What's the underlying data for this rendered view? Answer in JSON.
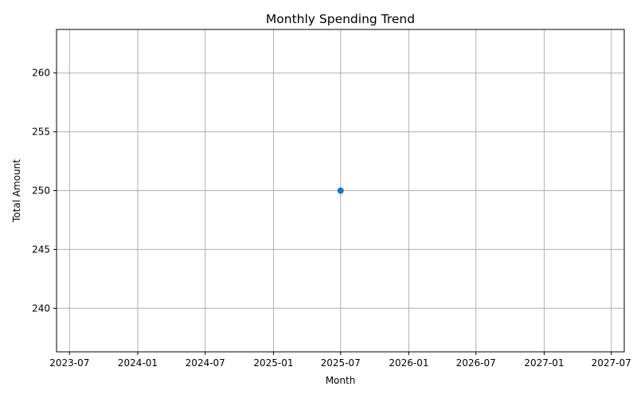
{
  "chart_data": {
    "type": "line",
    "title": "Monthly Spending Trend",
    "xlabel": "Month",
    "ylabel": "Total Amount",
    "x_scale": "time",
    "xlim": [
      "2023-05-27",
      "2027-08-05"
    ],
    "ylim": [
      236.3,
      263.7
    ],
    "x_ticks": [
      "2023-07",
      "2024-01",
      "2024-07",
      "2025-01",
      "2025-07",
      "2026-01",
      "2026-07",
      "2027-01",
      "2027-07"
    ],
    "y_ticks": [
      240,
      245,
      250,
      255,
      260
    ],
    "grid": true,
    "series": [
      {
        "color": "#1f77b4",
        "marker": "circle",
        "points": [
          {
            "x": "2025-07",
            "y": 250
          }
        ]
      }
    ]
  }
}
